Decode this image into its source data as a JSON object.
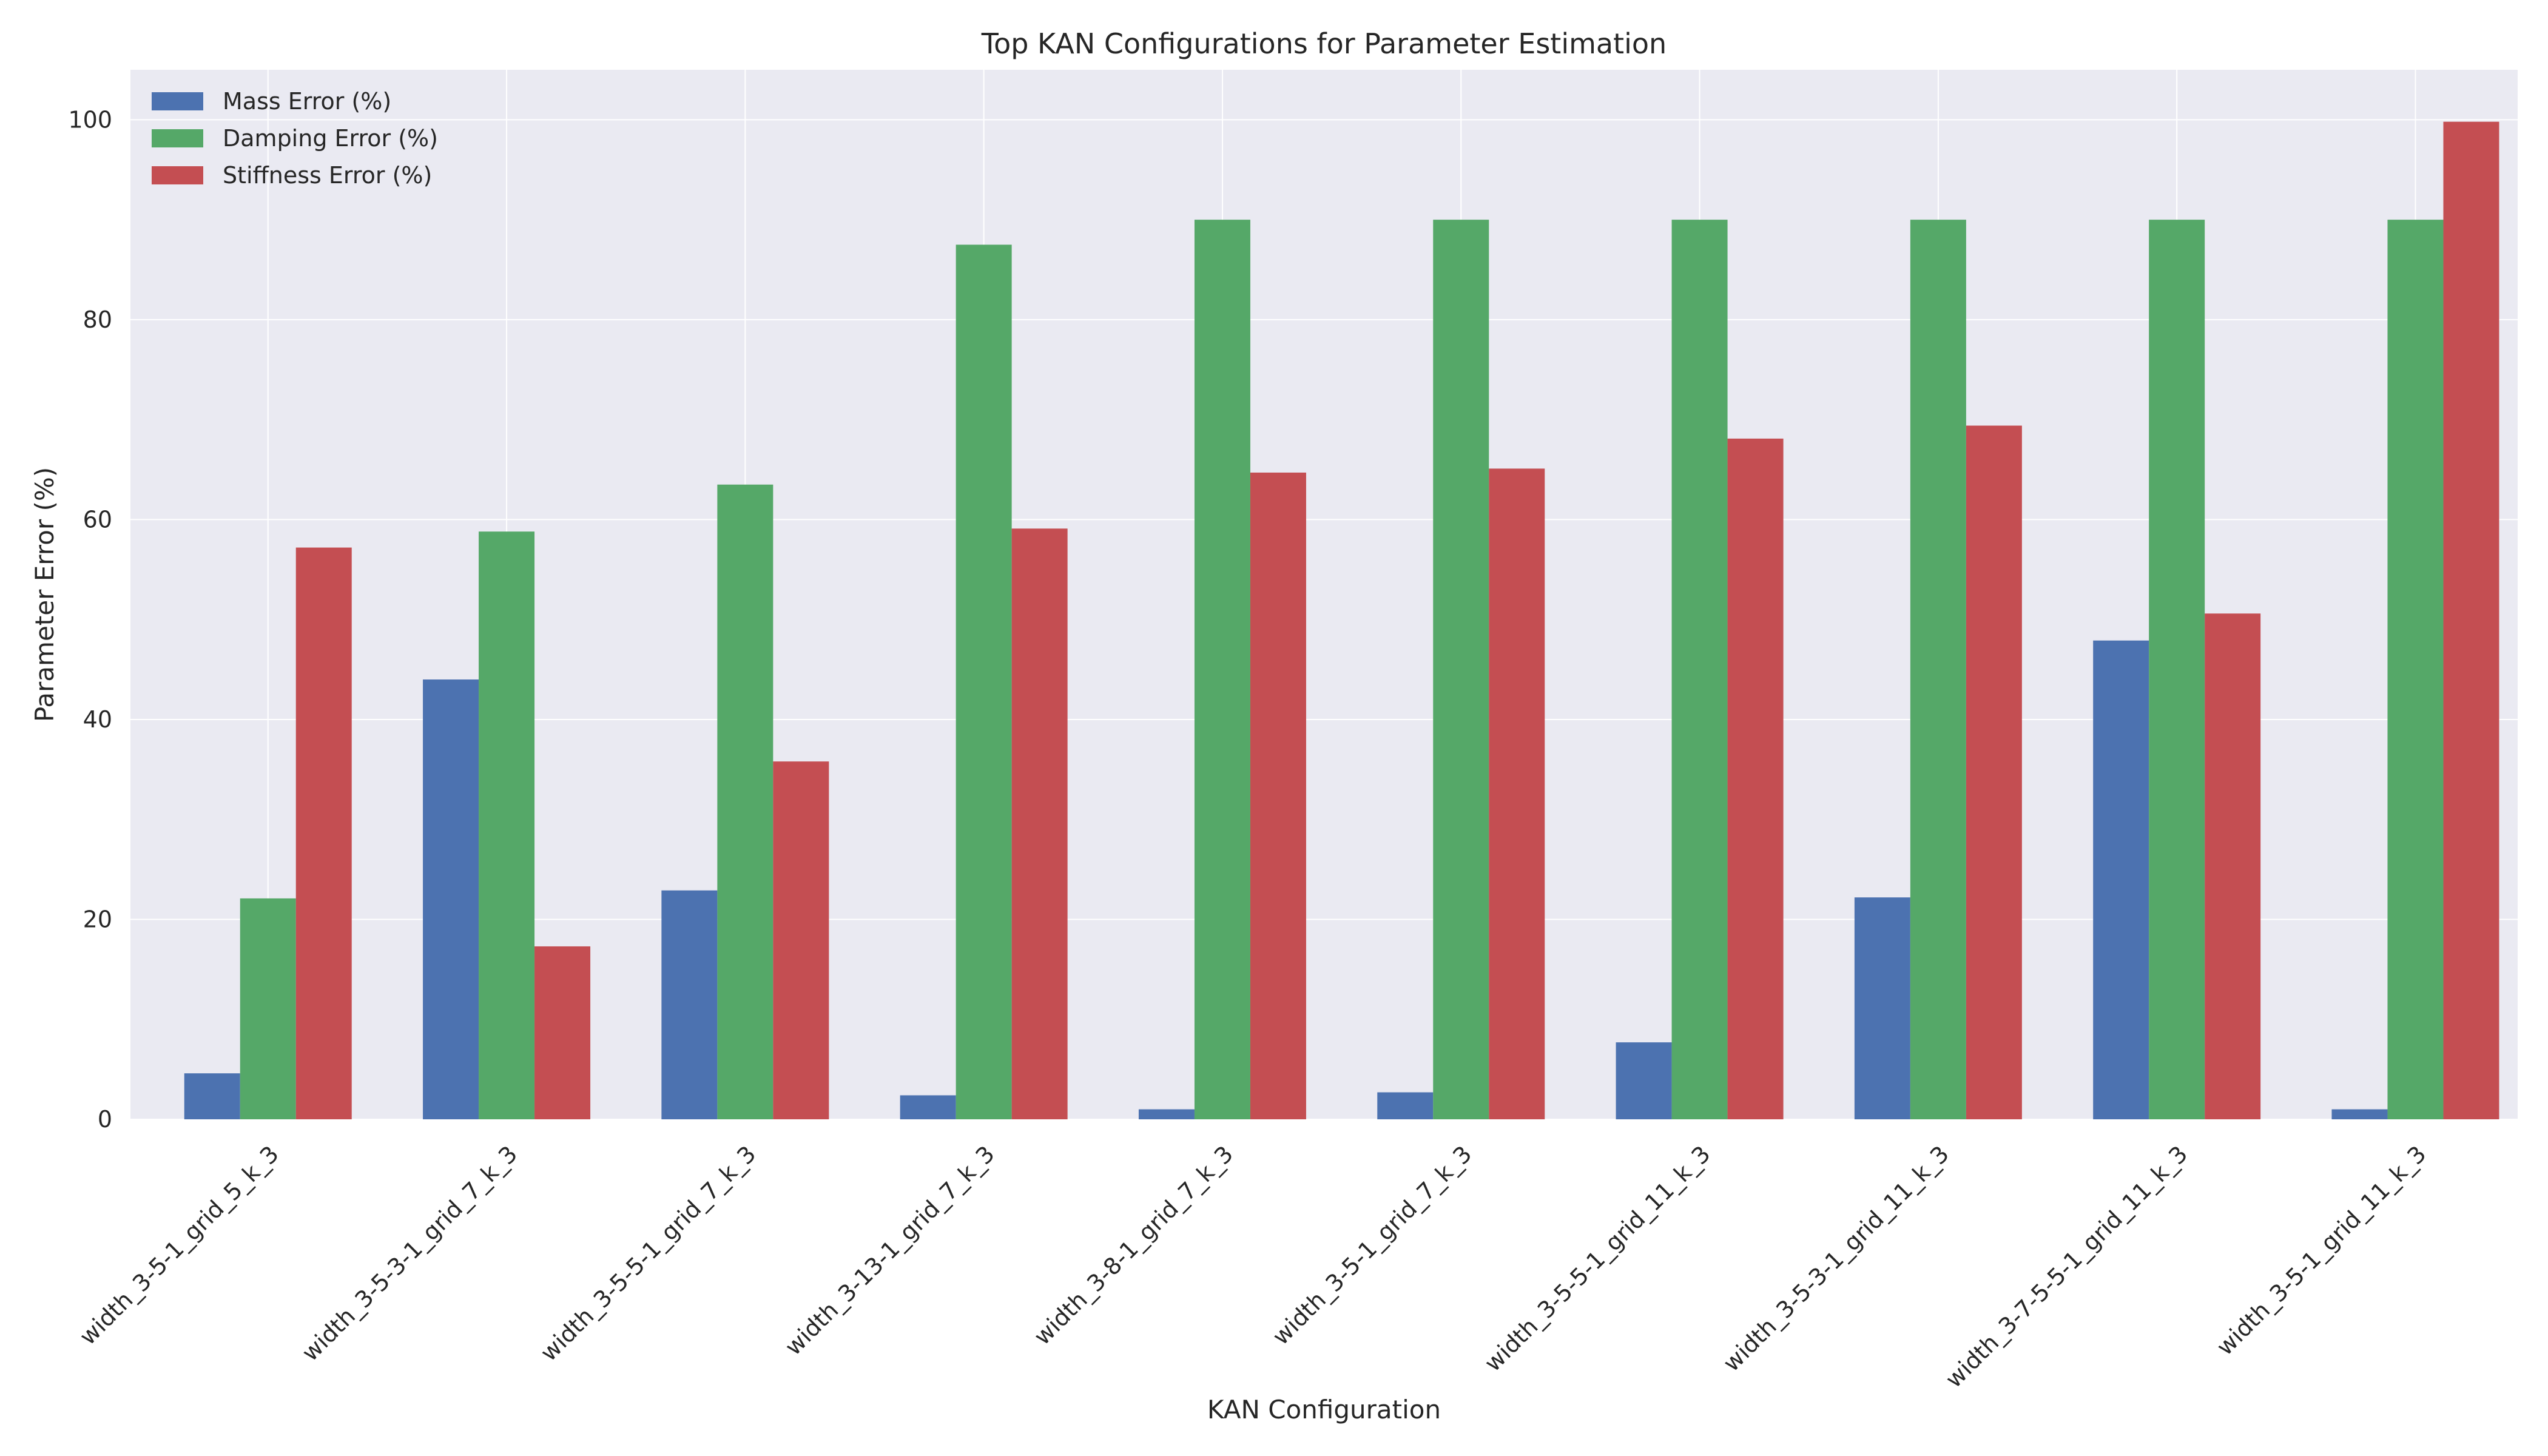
{
  "chart_data": {
    "type": "bar",
    "title": "Top KAN Configurations for Parameter Estimation",
    "xlabel": "KAN Configuration",
    "ylabel": "Parameter Error (%)",
    "ylim": [
      0,
      105
    ],
    "yticks": [
      "0",
      "20",
      "40",
      "60",
      "80",
      "100"
    ],
    "grid": true,
    "legend_position": "top-left",
    "categories": [
      "width_3-5-1_grid_5_k_3",
      "width_3-5-3-1_grid_7_k_3",
      "width_3-5-5-1_grid_7_k_3",
      "width_3-13-1_grid_7_k_3",
      "width_3-8-1_grid_7_k_3",
      "width_3-5-1_grid_7_k_3",
      "width_3-5-5-1_grid_11_k_3",
      "width_3-5-3-1_grid_11_k_3",
      "width_3-7-5-5-1_grid_11_k_3",
      "width_3-5-1_grid_11_k_3"
    ],
    "series": [
      {
        "name": "Mass Error (%)",
        "color": "#4c72b0",
        "values": [
          4.6,
          44.0,
          22.9,
          2.4,
          1.0,
          2.7,
          7.7,
          22.2,
          47.9,
          1.0
        ]
      },
      {
        "name": "Damping Error (%)",
        "color": "#55a868",
        "values": [
          22.1,
          58.8,
          63.5,
          87.5,
          90.0,
          90.0,
          90.0,
          90.0,
          90.0,
          90.0
        ]
      },
      {
        "name": "Stiffness Error (%)",
        "color": "#c44e52",
        "values": [
          57.2,
          17.3,
          35.8,
          59.1,
          64.7,
          65.1,
          68.1,
          69.4,
          50.6,
          99.8
        ]
      }
    ]
  }
}
